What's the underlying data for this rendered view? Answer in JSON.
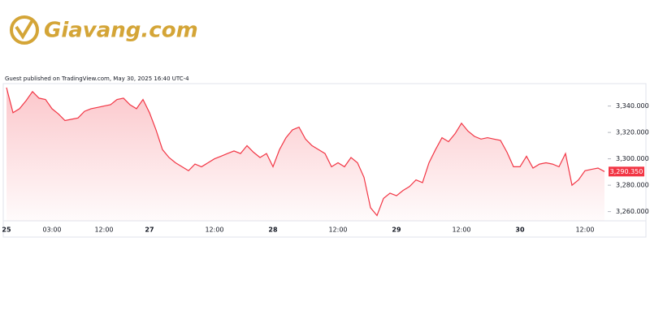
{
  "brand": "Giavang.com",
  "chart_data": {
    "type": "line",
    "subtitle": "Guest published on TradingView.com, May 30, 2025 16:40 UTC-4",
    "categories": [
      "25",
      null,
      null,
      null,
      null,
      null,
      null,
      "03:00",
      null,
      null,
      null,
      null,
      null,
      null,
      null,
      "12:00",
      null,
      null,
      null,
      null,
      null,
      null,
      "27",
      null,
      null,
      null,
      null,
      null,
      null,
      null,
      null,
      null,
      "12:00",
      null,
      null,
      null,
      null,
      null,
      null,
      null,
      null,
      "28",
      null,
      null,
      null,
      null,
      null,
      null,
      null,
      null,
      null,
      "12:00",
      null,
      null,
      null,
      null,
      null,
      null,
      null,
      null,
      "29",
      null,
      null,
      null,
      null,
      null,
      null,
      null,
      null,
      null,
      "12:00",
      null,
      null,
      null,
      null,
      null,
      null,
      null,
      null,
      "30",
      null,
      null,
      null,
      null,
      null,
      null,
      null,
      null,
      null,
      "12:00",
      null,
      null,
      null
    ],
    "series": [
      {
        "color": "#f23645",
        "values": [
          3354,
          3335,
          3338,
          3344,
          3351,
          3346,
          3345,
          3338,
          3334,
          3329,
          3330,
          3331,
          3336,
          3338,
          3339,
          3340,
          3341,
          3345,
          3346,
          3341,
          3338,
          3345,
          3335,
          3322,
          3307,
          3301,
          3297,
          3294,
          3291,
          3296,
          3294,
          3297,
          3300,
          3302,
          3304,
          3306,
          3304,
          3310,
          3305,
          3301,
          3304,
          3294,
          3307,
          3316,
          3322,
          3324,
          3315,
          3310,
          3307,
          3304,
          3294,
          3297,
          3294,
          3301,
          3297,
          3286,
          3263,
          3257,
          3270,
          3274,
          3272,
          3276,
          3279,
          3284,
          3282,
          3297,
          3307,
          3316,
          3313,
          3319,
          3327,
          3321,
          3317,
          3315,
          3316,
          3315,
          3314,
          3305,
          3294,
          3294,
          3302,
          3293,
          3296,
          3297,
          3296,
          3294,
          3304,
          3280,
          3284,
          3291,
          3292,
          3293,
          3290.35
        ],
        "last_value_label": "3,290.350"
      }
    ],
    "ylim": [
      3253,
      3357
    ],
    "yticks": [
      {
        "value": 3260,
        "label": "3,260.000"
      },
      {
        "value": 3280,
        "label": "3,280.000"
      },
      {
        "value": 3300,
        "label": "3,300.000"
      },
      {
        "value": 3320,
        "label": "3,320.000"
      },
      {
        "value": 3340,
        "label": "3,340.000"
      }
    ]
  }
}
